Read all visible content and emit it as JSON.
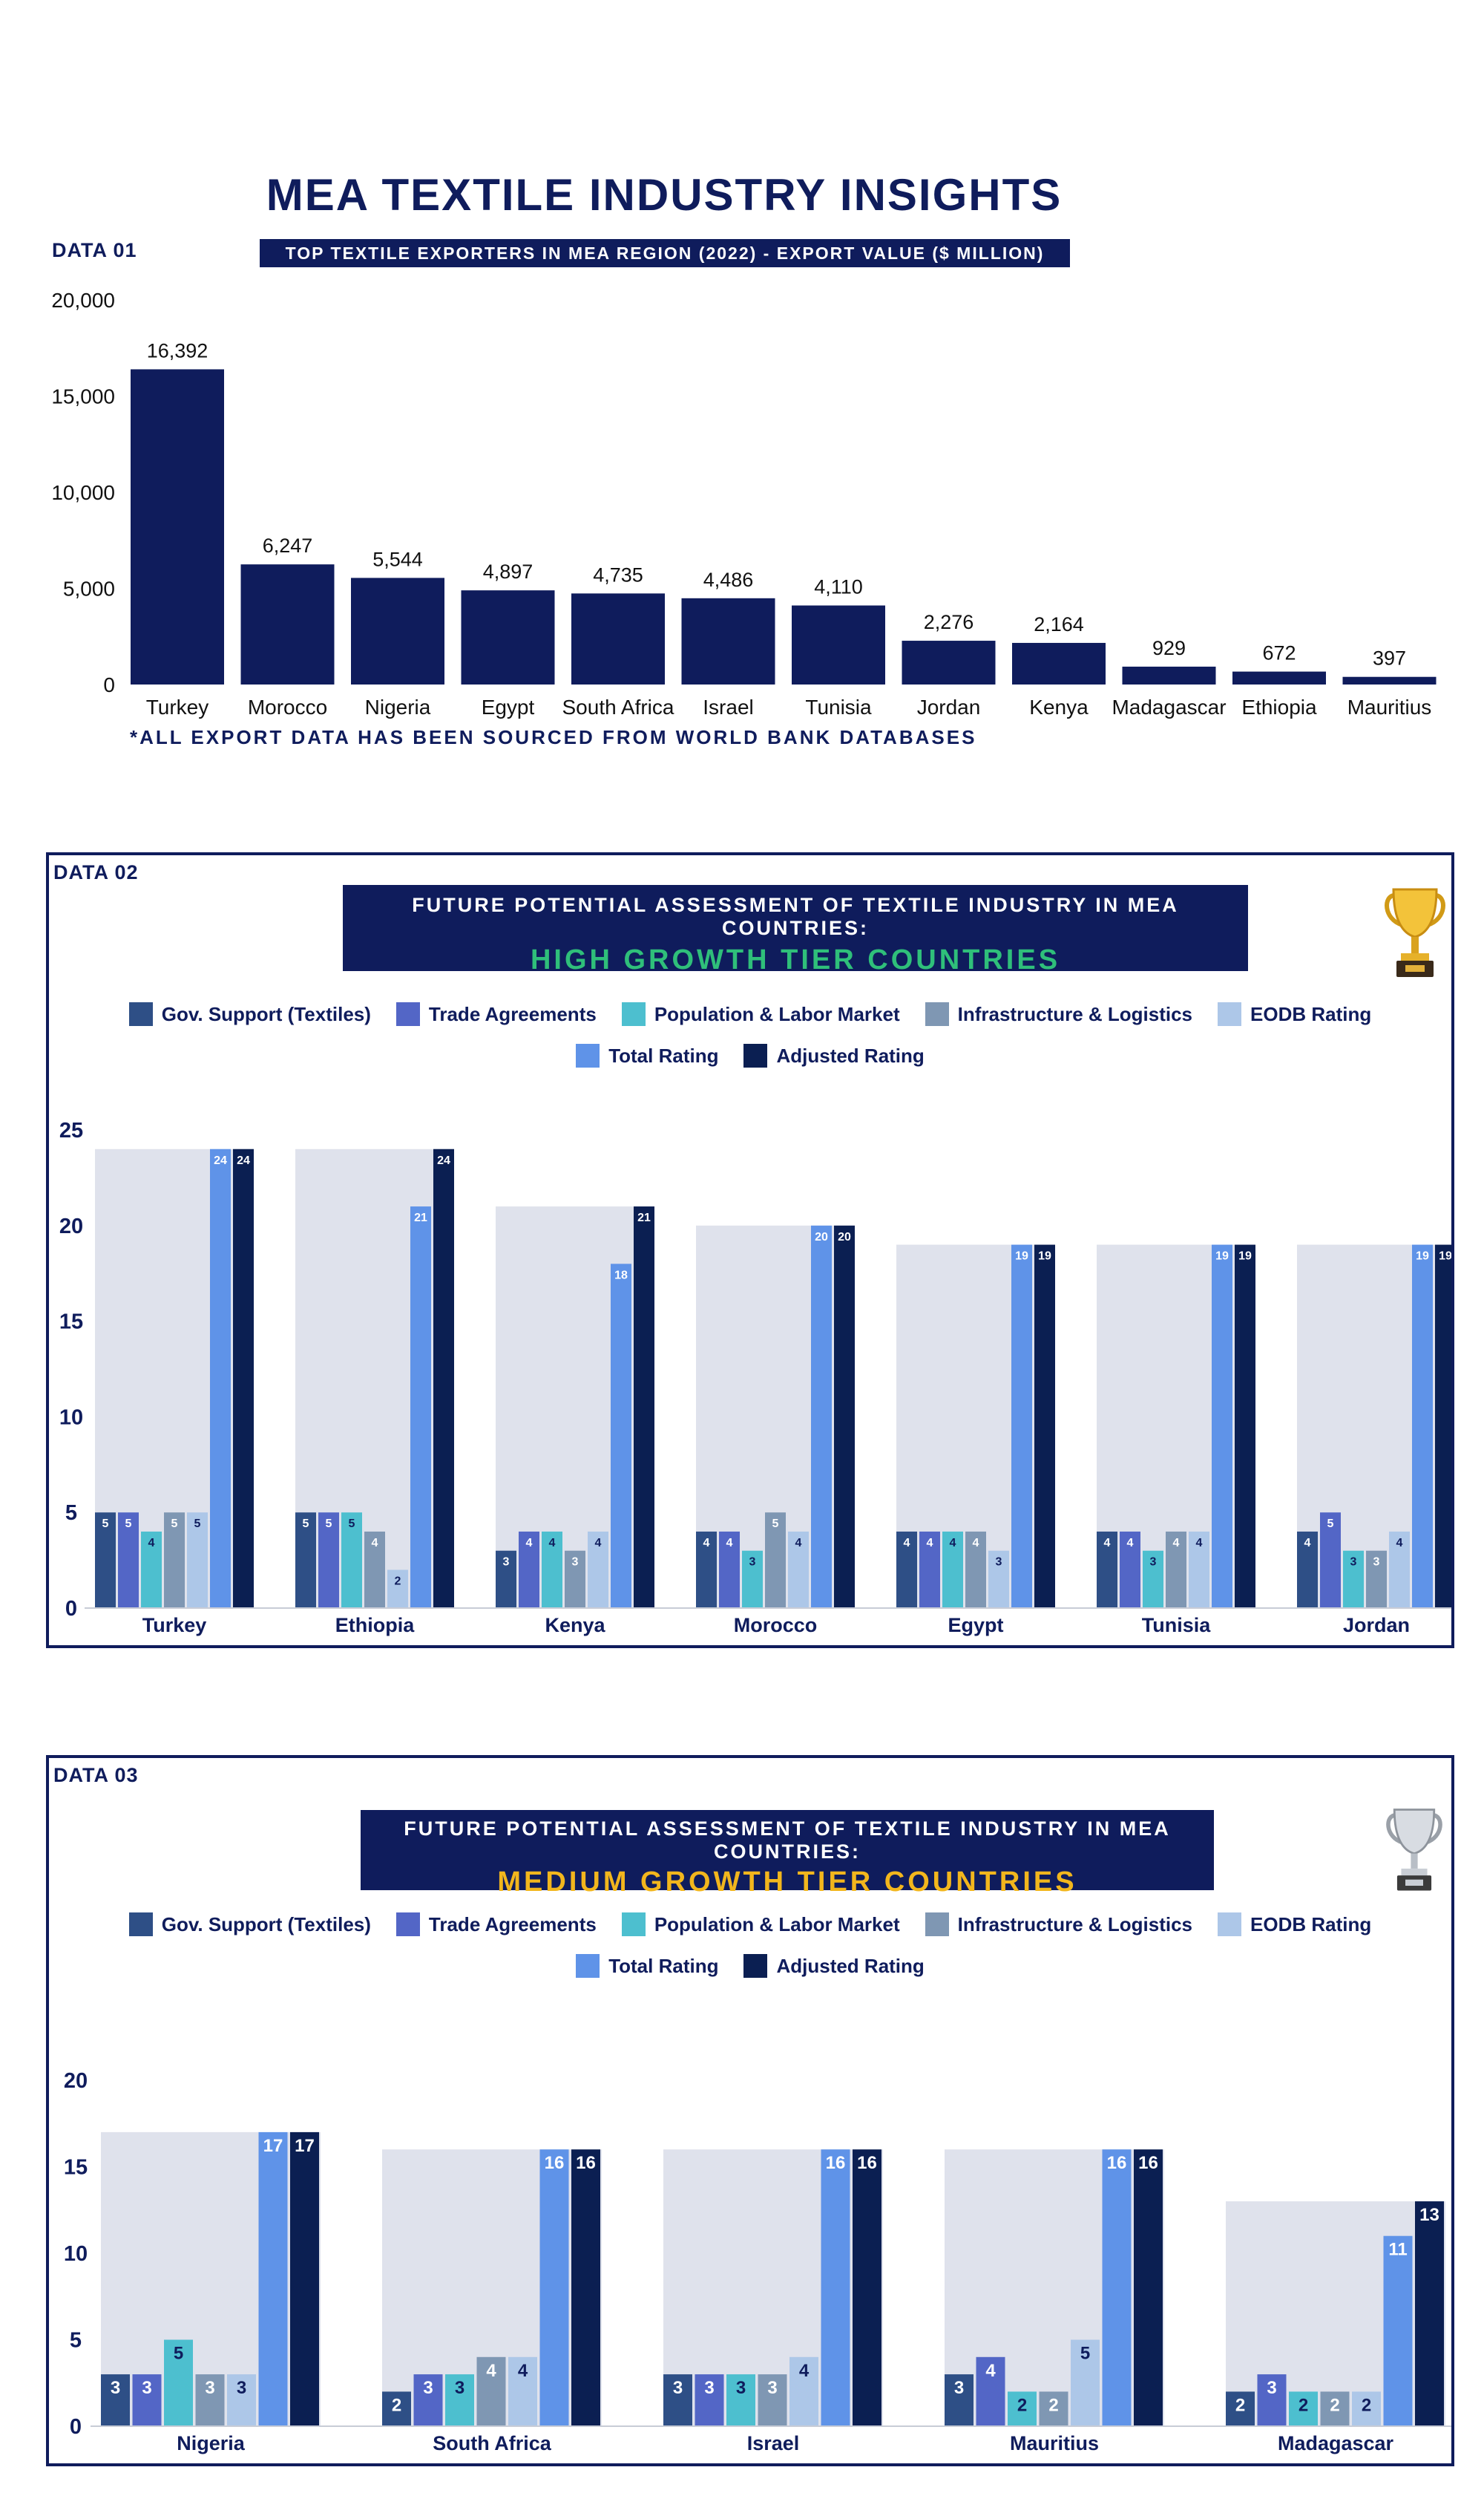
{
  "page": {
    "title": "MEA TEXTILE INDUSTRY INSIGHTS"
  },
  "colors": {
    "navy": "#0f1c5c",
    "gov_support": "#2e4f86",
    "trade_agreements": "#5366c6",
    "population_labor": "#4dbfcf",
    "infrastructure": "#7f97b3",
    "eodb": "#adc7e8",
    "total": "#5f93e8",
    "adjusted": "#0b1f52",
    "group_bg": "#dfe2ec",
    "high_tier_text": "#2fbf7a",
    "medium_tier_text": "#f2b61d"
  },
  "chart1": {
    "tag": "DATA 01",
    "subtitle": "TOP TEXTILE EXPORTERS IN MEA REGION (2022) - EXPORT VALUE ($ MILLION)",
    "note": "*ALL EXPORT DATA HAS BEEN SOURCED FROM WORLD BANK DATABASES"
  },
  "chart2": {
    "tag": "DATA 02",
    "title_line1": "FUTURE POTENTIAL ASSESSMENT OF TEXTILE INDUSTRY IN MEA COUNTRIES:",
    "title_line2": "HIGH GROWTH TIER COUNTRIES",
    "icon": "gold-trophy-icon"
  },
  "chart3": {
    "tag": "DATA 03",
    "title_line1": "FUTURE POTENTIAL ASSESSMENT OF TEXTILE INDUSTRY IN MEA COUNTRIES:",
    "title_line2": "MEDIUM GROWTH TIER COUNTRIES",
    "icon": "silver-trophy-icon"
  },
  "legend": [
    "Gov. Support (Textiles)",
    "Trade Agreements",
    "Population & Labor Market",
    "Infrastructure & Logistics",
    "EODB Rating",
    "Total Rating",
    "Adjusted Rating"
  ],
  "chart_data": [
    {
      "type": "bar",
      "title": "TOP TEXTILE EXPORTERS IN MEA REGION (2022) - EXPORT VALUE ($ MILLION)",
      "categories": [
        "Turkey",
        "Morocco",
        "Nigeria",
        "Egypt",
        "South Africa",
        "Israel",
        "Tunisia",
        "Jordan",
        "Kenya",
        "Madagascar",
        "Ethiopia",
        "Mauritius"
      ],
      "values": [
        16392,
        6247,
        5544,
        4897,
        4735,
        4486,
        4110,
        2276,
        2164,
        929,
        672,
        397
      ],
      "value_labels": [
        "16,392",
        "6,247",
        "5,544",
        "4,897",
        "4,735",
        "4,486",
        "4,110",
        "2,276",
        "2,164",
        "929",
        "672",
        "397"
      ],
      "yticks": [
        "0",
        "5,000",
        "10,000",
        "15,000",
        "20,000"
      ],
      "ylim": [
        0,
        20000
      ],
      "grid": false
    },
    {
      "type": "bar",
      "title": "HIGH GROWTH TIER COUNTRIES",
      "categories": [
        "Turkey",
        "Ethiopia",
        "Kenya",
        "Morocco",
        "Egypt",
        "Tunisia",
        "Jordan"
      ],
      "series": [
        {
          "name": "Gov. Support (Textiles)",
          "values": [
            5,
            5,
            3,
            4,
            4,
            4,
            4
          ]
        },
        {
          "name": "Trade Agreements",
          "values": [
            5,
            5,
            4,
            4,
            4,
            4,
            5
          ]
        },
        {
          "name": "Population & Labor Market",
          "values": [
            4,
            5,
            4,
            3,
            4,
            3,
            3
          ]
        },
        {
          "name": "Infrastructure & Logistics",
          "values": [
            5,
            4,
            3,
            5,
            4,
            4,
            3
          ]
        },
        {
          "name": "EODB Rating",
          "values": [
            5,
            2,
            4,
            4,
            3,
            4,
            4
          ]
        },
        {
          "name": "Total Rating",
          "values": [
            24,
            21,
            18,
            20,
            19,
            19,
            19
          ]
        },
        {
          "name": "Adjusted Rating",
          "values": [
            24,
            24,
            21,
            20,
            19,
            19,
            19
          ]
        }
      ],
      "yticks": [
        "0",
        "5",
        "10",
        "15",
        "20",
        "25"
      ],
      "ylim": [
        0,
        25
      ],
      "legend_position": "top-center"
    },
    {
      "type": "bar",
      "title": "MEDIUM GROWTH TIER COUNTRIES",
      "categories": [
        "Nigeria",
        "South Africa",
        "Israel",
        "Mauritius",
        "Madagascar"
      ],
      "series": [
        {
          "name": "Gov. Support (Textiles)",
          "values": [
            3,
            2,
            3,
            3,
            2
          ]
        },
        {
          "name": "Trade Agreements",
          "values": [
            3,
            3,
            3,
            4,
            3
          ]
        },
        {
          "name": "Population & Labor Market",
          "values": [
            5,
            3,
            3,
            2,
            2
          ]
        },
        {
          "name": "Infrastructure & Logistics",
          "values": [
            3,
            4,
            3,
            2,
            2
          ]
        },
        {
          "name": "EODB Rating",
          "values": [
            3,
            4,
            4,
            5,
            2
          ]
        },
        {
          "name": "Total Rating",
          "values": [
            17,
            16,
            16,
            16,
            11
          ]
        },
        {
          "name": "Adjusted Rating",
          "values": [
            17,
            16,
            16,
            16,
            13
          ]
        }
      ],
      "yticks": [
        "0",
        "5",
        "10",
        "15",
        "20"
      ],
      "ylim": [
        0,
        20
      ],
      "legend_position": "top-center"
    }
  ]
}
